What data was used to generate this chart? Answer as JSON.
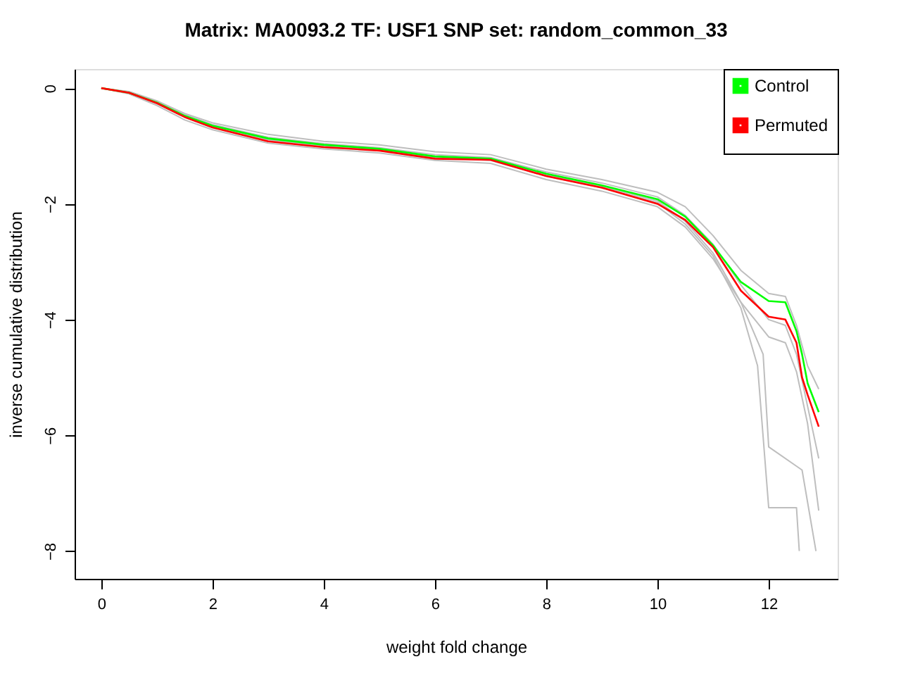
{
  "chart_data": {
    "type": "line",
    "title": "Matrix: MA0093.2 TF: USF1 SNP set: random_common_33",
    "xlabel": "weight fold change",
    "ylabel": "inverse cumulative distribution",
    "xlim": [
      -0.48,
      13.24
    ],
    "ylim": [
      -8.48,
      0.33
    ],
    "xticks": [
      0,
      2,
      4,
      6,
      8,
      10,
      12
    ],
    "yticks": [
      0,
      -2,
      -4,
      -6,
      -8
    ],
    "grid": false,
    "legend": "top right",
    "line_style": "solid",
    "marker": "none",
    "series": [
      {
        "color": "#bebebe",
        "x": [
          0,
          0.5,
          1,
          1.5,
          2,
          3,
          4,
          5,
          6,
          7,
          8,
          9,
          10,
          10.5,
          11,
          11.5,
          12,
          12.3,
          12.5,
          12.7,
          12.9
        ],
        "values": [
          0,
          -0.06,
          -0.22,
          -0.44,
          -0.6,
          -0.8,
          -0.92,
          -0.98,
          -1.1,
          -1.15,
          -1.4,
          -1.58,
          -1.8,
          -2.05,
          -2.55,
          -3.15,
          -3.55,
          -3.6,
          -4.1,
          -4.8,
          -5.2
        ]
      },
      {
        "color": "#bebebe",
        "x": [
          0,
          0.5,
          1,
          1.5,
          2,
          3,
          4,
          5,
          6,
          7,
          8,
          9,
          10,
          10.5,
          11,
          11.5,
          12,
          12.3,
          12.5,
          12.7,
          12.9
        ],
        "values": [
          0,
          -0.1,
          -0.3,
          -0.55,
          -0.72,
          -0.95,
          -1.05,
          -1.12,
          -1.25,
          -1.3,
          -1.58,
          -1.78,
          -2.05,
          -2.4,
          -2.95,
          -3.7,
          -4.3,
          -4.4,
          -4.9,
          -5.8,
          -7.3
        ]
      },
      {
        "color": "#bebebe",
        "x": [
          0,
          0.5,
          1,
          1.5,
          2,
          3,
          4,
          5,
          6,
          7,
          8,
          9,
          10,
          10.5,
          11,
          11.5,
          11.8,
          12.0,
          12.5,
          12.55
        ],
        "values": [
          0,
          -0.09,
          -0.27,
          -0.5,
          -0.68,
          -0.9,
          -1.0,
          -1.08,
          -1.2,
          -1.25,
          -1.52,
          -1.72,
          -1.98,
          -2.35,
          -2.9,
          -3.8,
          -4.8,
          -7.25,
          -7.25,
          -8.0
        ]
      },
      {
        "color": "#bebebe",
        "x": [
          0,
          0.5,
          1,
          1.5,
          2,
          3,
          4,
          5,
          6,
          7,
          8,
          9,
          10,
          10.5,
          11,
          11.5,
          11.9,
          12.0,
          12.6,
          12.85
        ],
        "values": [
          0,
          -0.08,
          -0.26,
          -0.49,
          -0.66,
          -0.88,
          -0.99,
          -1.06,
          -1.19,
          -1.24,
          -1.5,
          -1.7,
          -1.95,
          -2.3,
          -2.85,
          -3.7,
          -4.6,
          -6.2,
          -6.6,
          -8.0
        ]
      },
      {
        "color": "#bebebe",
        "x": [
          0,
          0.5,
          1,
          1.5,
          2,
          3,
          4,
          5,
          6,
          7,
          8,
          9,
          10,
          10.5,
          11,
          11.5,
          12,
          12.3,
          12.5,
          12.7,
          12.9
        ],
        "values": [
          0,
          -0.07,
          -0.24,
          -0.46,
          -0.63,
          -0.85,
          -0.96,
          -1.03,
          -1.15,
          -1.2,
          -1.45,
          -1.64,
          -1.88,
          -2.2,
          -2.7,
          -3.4,
          -4.0,
          -4.1,
          -4.6,
          -5.5,
          -6.4
        ]
      },
      {
        "name": "Control",
        "color": "#00ff00",
        "x": [
          0,
          0.5,
          1,
          1.5,
          2,
          3,
          4,
          5,
          6,
          7,
          8,
          9,
          10,
          10.5,
          11,
          11.5,
          12,
          12.3,
          12.5,
          12.6,
          12.7,
          12.9
        ],
        "values": [
          0,
          -0.08,
          -0.25,
          -0.48,
          -0.65,
          -0.87,
          -0.98,
          -1.05,
          -1.18,
          -1.22,
          -1.48,
          -1.68,
          -1.92,
          -2.22,
          -2.72,
          -3.35,
          -3.68,
          -3.7,
          -4.2,
          -4.6,
          -5.1,
          -5.6
        ]
      },
      {
        "name": "Permuted",
        "color": "#ff0000",
        "x": [
          0,
          0.5,
          1,
          1.5,
          2,
          3,
          4,
          5,
          6,
          7,
          8,
          9,
          10,
          10.5,
          11,
          11.5,
          12,
          12.3,
          12.5,
          12.6,
          12.7,
          12.9
        ],
        "values": [
          0,
          -0.08,
          -0.26,
          -0.5,
          -0.68,
          -0.92,
          -1.02,
          -1.08,
          -1.22,
          -1.24,
          -1.52,
          -1.72,
          -2.0,
          -2.28,
          -2.75,
          -3.5,
          -3.95,
          -4.0,
          -4.4,
          -5.0,
          -5.3,
          -5.85
        ]
      }
    ]
  }
}
